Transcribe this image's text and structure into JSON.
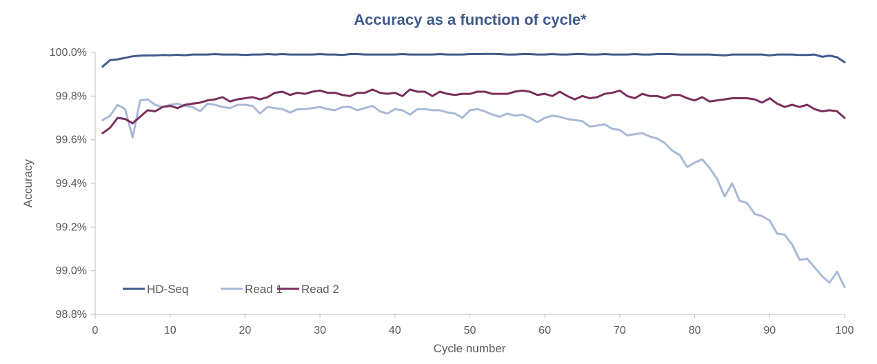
{
  "chart_data": {
    "type": "line",
    "title": "Accuracy as a function of cycle*",
    "xlabel": "Cycle number",
    "ylabel": "Accuracy",
    "xlim": [
      0,
      100
    ],
    "ylim": [
      98.8,
      100.0
    ],
    "x_ticks": [
      0,
      10,
      20,
      30,
      40,
      50,
      60,
      70,
      80,
      90,
      100
    ],
    "x_tick_labels": [
      "0",
      "10",
      "20",
      "30",
      "40",
      "50",
      "60",
      "70",
      "80",
      "90",
      "100"
    ],
    "y_ticks": [
      98.8,
      99.0,
      99.2,
      99.4,
      99.6,
      99.8,
      100.0
    ],
    "y_tick_labels": [
      "98.8%",
      "99.0%",
      "99.2%",
      "99.4%",
      "99.6%",
      "99.8%",
      "100.0%"
    ],
    "grid": false,
    "legend_position": "bottom-left",
    "x": [
      1,
      2,
      3,
      4,
      5,
      6,
      7,
      8,
      9,
      10,
      11,
      12,
      13,
      14,
      15,
      16,
      17,
      18,
      19,
      20,
      21,
      22,
      23,
      24,
      25,
      26,
      27,
      28,
      29,
      30,
      31,
      32,
      33,
      34,
      35,
      36,
      37,
      38,
      39,
      40,
      41,
      42,
      43,
      44,
      45,
      46,
      47,
      48,
      49,
      50,
      51,
      52,
      53,
      54,
      55,
      56,
      57,
      58,
      59,
      60,
      61,
      62,
      63,
      64,
      65,
      66,
      67,
      68,
      69,
      70,
      71,
      72,
      73,
      74,
      75,
      76,
      77,
      78,
      79,
      80,
      81,
      82,
      83,
      84,
      85,
      86,
      87,
      88,
      89,
      90,
      91,
      92,
      93,
      94,
      95,
      96,
      97,
      98,
      99,
      100
    ],
    "series": [
      {
        "name": "HD-Seq",
        "color": "#3f5a8a",
        "values": [
          99.935,
          99.965,
          99.968,
          99.975,
          99.982,
          99.985,
          99.986,
          99.986,
          99.988,
          99.987,
          99.989,
          99.987,
          99.99,
          99.99,
          99.99,
          99.992,
          99.99,
          99.99,
          99.99,
          99.988,
          99.99,
          99.99,
          99.992,
          99.99,
          99.992,
          99.99,
          99.99,
          99.99,
          99.99,
          99.992,
          99.99,
          99.99,
          99.988,
          99.992,
          99.992,
          99.99,
          99.99,
          99.99,
          99.99,
          99.99,
          99.992,
          99.99,
          99.99,
          99.99,
          99.99,
          99.992,
          99.99,
          99.99,
          99.99,
          99.992,
          99.992,
          99.993,
          99.993,
          99.992,
          99.99,
          99.99,
          99.992,
          99.992,
          99.99,
          99.99,
          99.992,
          99.99,
          99.99,
          99.992,
          99.992,
          99.99,
          99.99,
          99.992,
          99.99,
          99.99,
          99.99,
          99.992,
          99.99,
          99.99,
          99.992,
          99.992,
          99.992,
          99.99,
          99.99,
          99.99,
          99.99,
          99.99,
          99.988,
          99.986,
          99.99,
          99.99,
          99.99,
          99.99,
          99.99,
          99.986,
          99.99,
          99.99,
          99.99,
          99.988,
          99.988,
          99.99,
          99.98,
          99.985,
          99.978,
          99.955
        ]
      },
      {
        "name": "Read 1",
        "color": "#a8b8d6",
        "values": [
          99.69,
          99.71,
          99.76,
          99.74,
          99.61,
          99.78,
          99.785,
          99.76,
          99.75,
          99.76,
          99.765,
          99.755,
          99.75,
          99.73,
          99.765,
          99.76,
          99.75,
          99.745,
          99.76,
          99.76,
          99.755,
          99.72,
          99.75,
          99.745,
          99.74,
          99.725,
          99.74,
          99.74,
          99.745,
          99.75,
          99.74,
          99.735,
          99.75,
          99.75,
          99.735,
          99.745,
          99.755,
          99.73,
          99.72,
          99.74,
          99.735,
          99.715,
          99.74,
          99.74,
          99.735,
          99.735,
          99.725,
          99.72,
          99.7,
          99.735,
          99.74,
          99.73,
          99.715,
          99.705,
          99.72,
          99.71,
          99.715,
          99.7,
          99.68,
          99.7,
          99.71,
          99.705,
          99.695,
          99.69,
          99.685,
          99.66,
          99.665,
          99.67,
          99.65,
          99.645,
          99.62,
          99.625,
          99.63,
          99.615,
          99.605,
          99.585,
          99.55,
          99.53,
          99.475,
          99.495,
          99.51,
          99.47,
          99.42,
          99.34,
          99.4,
          99.32,
          99.31,
          99.26,
          99.25,
          99.23,
          99.17,
          99.165,
          99.12,
          99.05,
          99.055,
          99.015,
          98.975,
          98.945,
          98.995,
          98.925
        ]
      },
      {
        "name": "Read 2",
        "color": "#7a2e5c",
        "values": [
          99.63,
          99.655,
          99.7,
          99.695,
          99.675,
          99.705,
          99.735,
          99.73,
          99.75,
          99.755,
          99.745,
          99.76,
          99.765,
          99.77,
          99.78,
          99.785,
          99.795,
          99.775,
          99.785,
          99.79,
          99.795,
          99.785,
          99.795,
          99.815,
          99.82,
          99.805,
          99.815,
          99.81,
          99.82,
          99.825,
          99.815,
          99.815,
          99.805,
          99.8,
          99.815,
          99.815,
          99.83,
          99.815,
          99.81,
          99.815,
          99.8,
          99.83,
          99.82,
          99.82,
          99.8,
          99.82,
          99.81,
          99.805,
          99.81,
          99.81,
          99.82,
          99.82,
          99.81,
          99.81,
          99.81,
          99.82,
          99.825,
          99.82,
          99.805,
          99.81,
          99.8,
          99.82,
          99.8,
          99.785,
          99.8,
          99.79,
          99.795,
          99.81,
          99.815,
          99.825,
          99.8,
          99.79,
          99.81,
          99.8,
          99.8,
          99.79,
          99.805,
          99.805,
          99.79,
          99.78,
          99.795,
          99.775,
          99.78,
          99.785,
          99.79,
          99.79,
          99.79,
          99.785,
          99.77,
          99.79,
          99.765,
          99.75,
          99.76,
          99.75,
          99.76,
          99.74,
          99.73,
          99.735,
          99.73,
          99.7
        ]
      }
    ]
  }
}
